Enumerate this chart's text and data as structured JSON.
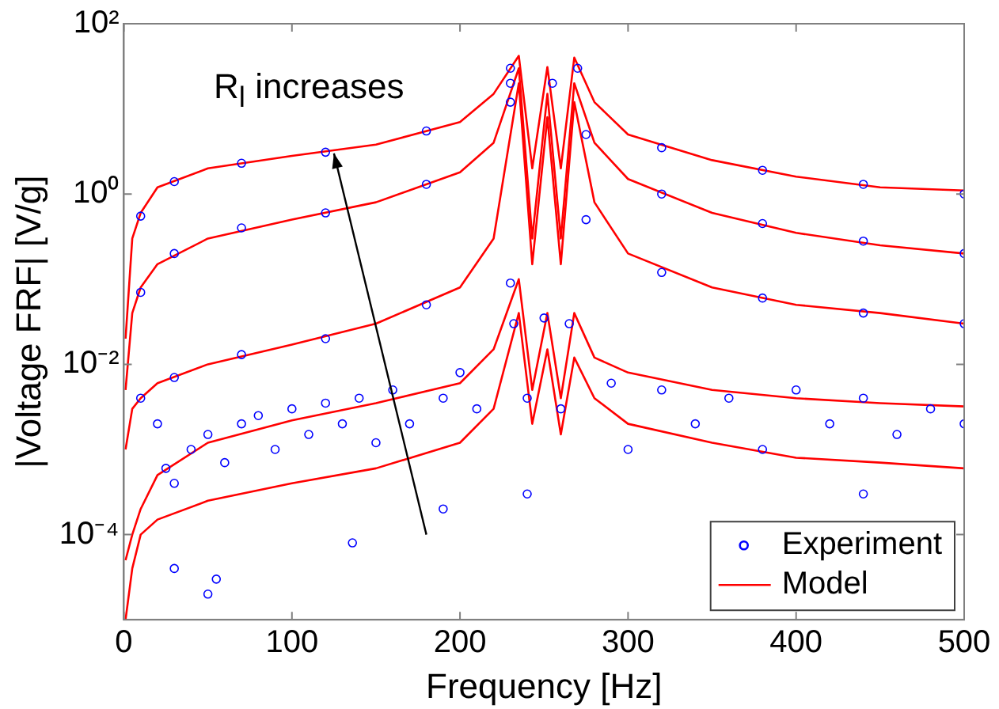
{
  "chart_data": {
    "type": "line",
    "xlabel": "Frequency [Hz]",
    "ylabel": "|Voltage FRF| [V/g]",
    "annotations": [
      "R$_{l}$ increases"
    ],
    "log": "y",
    "grid": false,
    "legend": "bottom right",
    "xlim": [
      0,
      500
    ],
    "xticks": [
      0,
      100,
      200,
      300,
      400,
      500
    ],
    "ylim": [
      1e-05,
      100
    ],
    "yticks": [
      {
        "value": 100,
        "label": "10²"
      },
      {
        "value": 1,
        "label": "10⁰"
      },
      {
        "value": 0.01,
        "label": "10⁻²"
      },
      {
        "value": 0.0001,
        "label": "10⁻⁴"
      }
    ],
    "series": [
      {
        "name": "Experiment",
        "type": "scatter",
        "marker": "circle",
        "color": "#0000ff",
        "x": [
          10,
          30,
          70,
          120,
          180,
          230,
          255,
          270,
          320,
          380,
          440,
          500,
          10,
          30,
          70,
          120,
          180,
          230,
          275,
          320,
          380,
          440,
          500,
          10,
          30,
          70,
          120,
          180,
          230,
          275,
          320,
          380,
          440,
          500,
          20,
          25,
          30,
          40,
          50,
          60,
          70,
          80,
          90,
          100,
          110,
          120,
          130,
          140,
          150,
          160,
          170,
          190,
          200,
          210,
          230,
          232,
          240,
          250,
          260,
          265,
          290,
          300,
          320,
          340,
          360,
          380,
          400,
          420,
          440,
          460,
          480,
          500,
          30,
          50,
          55,
          136,
          190,
          240,
          440
        ],
        "values": [
          0.55,
          1.4,
          2.3,
          3.1,
          5.5,
          30,
          20,
          30,
          3.5,
          1.9,
          1.3,
          1.0,
          0.07,
          0.2,
          0.4,
          0.6,
          1.3,
          20,
          5,
          1,
          0.45,
          0.28,
          0.2,
          0.004,
          0.007,
          0.013,
          0.02,
          0.05,
          12,
          0.5,
          0.12,
          0.06,
          0.04,
          0.03,
          0.002,
          0.0006,
          0.0004,
          0.001,
          0.0015,
          0.0007,
          0.002,
          0.0025,
          0.001,
          0.003,
          0.0015,
          0.0035,
          0.002,
          0.004,
          0.0012,
          0.005,
          0.002,
          0.004,
          0.008,
          0.003,
          0.09,
          0.03,
          0.004,
          0.035,
          0.003,
          0.03,
          0.006,
          0.001,
          0.005,
          0.002,
          0.004,
          0.001,
          0.005,
          0.002,
          0.004,
          0.0015,
          0.003,
          0.002,
          4e-05,
          2e-05,
          3e-05,
          8e-05,
          0.0002,
          0.0003,
          0.0003
        ]
      },
      {
        "name": "Model",
        "marker": "none",
        "line_style": "solid",
        "color": "#ff0000",
        "x": [
          1,
          5,
          10,
          20,
          50,
          100,
          150,
          200,
          220,
          235,
          243,
          252,
          260,
          268,
          280,
          300,
          350,
          400,
          450,
          500
        ],
        "values": [
          0.02,
          0.3,
          0.6,
          1.2,
          2,
          2.8,
          3.8,
          7,
          15,
          42,
          2,
          31,
          2,
          40,
          12,
          5,
          2.5,
          1.6,
          1.2,
          1.1
        ]
      },
      {
        "type": "line",
        "marker": "none",
        "line_style": "solid",
        "color": "#ff0000",
        "x": [
          1,
          5,
          10,
          20,
          50,
          100,
          150,
          200,
          220,
          235,
          243,
          252,
          260,
          268,
          280,
          300,
          350,
          400,
          450,
          500
        ],
        "values": [
          0.005,
          0.04,
          0.08,
          0.15,
          0.3,
          0.5,
          0.8,
          1.8,
          4,
          30,
          0.3,
          15,
          0.3,
          20,
          4,
          1.5,
          0.6,
          0.35,
          0.25,
          0.2
        ]
      },
      {
        "type": "line",
        "marker": "none",
        "line_style": "solid",
        "color": "#ff0000",
        "x": [
          1,
          5,
          10,
          20,
          50,
          100,
          150,
          200,
          220,
          235,
          243,
          252,
          260,
          268,
          280,
          300,
          350,
          400,
          450,
          500
        ],
        "values": [
          0.001,
          0.003,
          0.004,
          0.006,
          0.01,
          0.017,
          0.03,
          0.08,
          0.3,
          20,
          0.15,
          8,
          0.15,
          12,
          0.8,
          0.2,
          0.08,
          0.05,
          0.04,
          0.03
        ]
      },
      {
        "type": "line",
        "marker": "none",
        "line_style": "solid",
        "color": "#ff0000",
        "x": [
          1,
          5,
          10,
          20,
          50,
          100,
          150,
          200,
          220,
          235,
          243,
          252,
          260,
          268,
          280,
          300,
          350,
          400,
          450,
          500
        ],
        "values": [
          5e-05,
          0.0001,
          0.0002,
          0.0005,
          0.0012,
          0.0022,
          0.0035,
          0.006,
          0.015,
          0.1,
          0.005,
          0.04,
          0.004,
          0.04,
          0.012,
          0.008,
          0.005,
          0.004,
          0.0035,
          0.0032
        ]
      },
      {
        "type": "line",
        "marker": "none",
        "line_style": "solid",
        "color": "#ff0000",
        "x": [
          1,
          5,
          10,
          20,
          50,
          100,
          150,
          200,
          220,
          235,
          243,
          252,
          260,
          268,
          280,
          300,
          350,
          400,
          450,
          500
        ],
        "values": [
          1e-05,
          4e-05,
          0.0001,
          0.00015,
          0.00025,
          0.0004,
          0.0006,
          0.0012,
          0.003,
          0.04,
          0.002,
          0.015,
          0.0015,
          0.012,
          0.004,
          0.002,
          0.0012,
          0.0008,
          0.0007,
          0.0006
        ]
      }
    ]
  }
}
